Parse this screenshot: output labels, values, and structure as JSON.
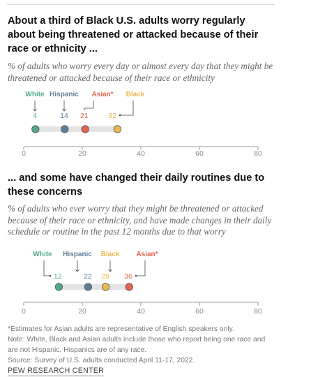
{
  "chart_data": [
    {
      "type": "dot",
      "title": "About a third of Black U.S. adults worry regularly about being threatened or attacked because of their race or ethnicity ...",
      "subtitle": "% of adults who worry every day or almost every day that they might be threatened or attacked because of their race or ethnicity",
      "xlim": [
        0,
        80
      ],
      "ticks": [
        0,
        20,
        40,
        60,
        80
      ],
      "grid": false,
      "series": [
        {
          "name": "White",
          "value": 4,
          "label": "4",
          "color": "#52a88f"
        },
        {
          "name": "Hispanic",
          "value": 14,
          "label": "14",
          "color": "#5f7f98"
        },
        {
          "name": "Asian*",
          "value": 21,
          "label": "21",
          "color": "#e0644e"
        },
        {
          "name": "Black",
          "value": 32,
          "label": "32",
          "color": "#e9b84f"
        }
      ]
    },
    {
      "type": "dot",
      "title": "... and some have changed their daily routines due to these concerns",
      "subtitle": "% of adults who ever worry that they might be threatened or attacked because of their race or ethnicity, and have made changes in their daily schedule or routine in the past 12 months due to that worry",
      "xlim": [
        0,
        80
      ],
      "ticks": [
        0,
        20,
        40,
        60,
        80
      ],
      "grid": false,
      "series": [
        {
          "name": "White",
          "value": 12,
          "label": "12",
          "color": "#52a88f"
        },
        {
          "name": "Hispanic",
          "value": 22,
          "label": "22",
          "color": "#5f7f98"
        },
        {
          "name": "Black",
          "value": 28,
          "label": "28",
          "color": "#e9b84f"
        },
        {
          "name": "Asian*",
          "value": 36,
          "label": "36",
          "color": "#e0644e"
        }
      ]
    }
  ],
  "notes": [
    "*Estimates for Asian adults are representative of English speakers only.",
    "Note: White, Black and Asian adults include those who report being one race and",
    "are not Hispanic. Hispanics are of any race.",
    "Source: Survey of U.S. adults conducted April 11-17, 2022."
  ],
  "footer": "PEW RESEARCH CENTER",
  "colors": {
    "track": "#e3e3e3",
    "axis": "#999999",
    "tick_label": "#8a8a8a",
    "name_label": "#555555"
  }
}
